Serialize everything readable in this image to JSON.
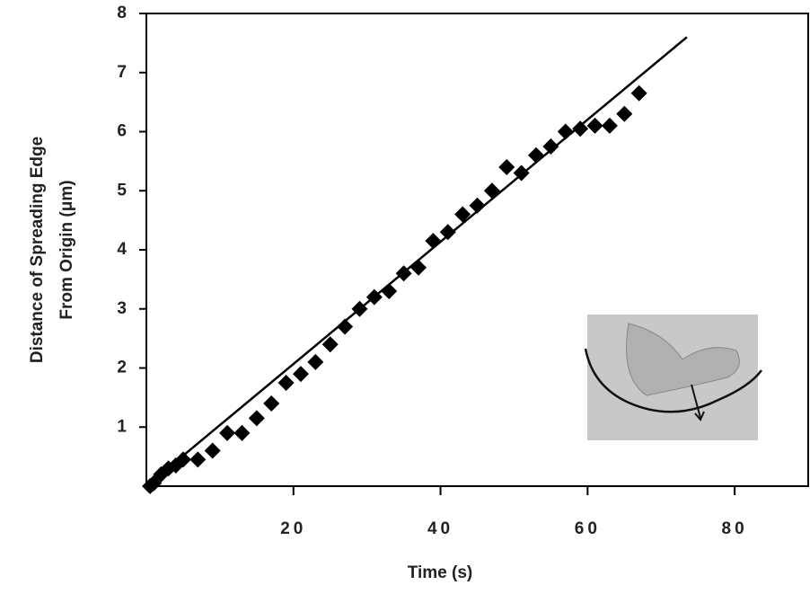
{
  "chart_data": {
    "type": "scatter",
    "xlabel": "Time (s)",
    "ylabel": [
      "Distance of Spreading Edge",
      "From Origin (μm)"
    ],
    "xlim": [
      0,
      90
    ],
    "ylim": [
      0,
      8
    ],
    "xticks": [
      20,
      40,
      60,
      80
    ],
    "yticks": [
      1,
      2,
      3,
      4,
      5,
      6,
      7,
      8
    ],
    "color": "#000000",
    "x": [
      0.5,
      1,
      2,
      3,
      4,
      5,
      7,
      9,
      11,
      13,
      15,
      17,
      19,
      21,
      23,
      25,
      27,
      29,
      31,
      33,
      35,
      37,
      39,
      41,
      43,
      45,
      47,
      49,
      51,
      53,
      55,
      57,
      59,
      61,
      63,
      65,
      67
    ],
    "values": [
      0.0,
      0.05,
      0.2,
      0.3,
      0.35,
      0.45,
      0.45,
      0.6,
      0.9,
      0.9,
      1.15,
      1.4,
      1.75,
      1.9,
      2.1,
      2.4,
      2.7,
      3.0,
      3.2,
      3.3,
      3.6,
      3.7,
      4.15,
      4.3,
      4.6,
      4.75,
      5.0,
      5.4,
      5.3,
      5.6,
      5.75,
      6.0,
      6.05,
      6.1,
      6.1,
      6.3,
      6.65
    ],
    "fit": {
      "x": [
        0,
        73.5
      ],
      "y": [
        0,
        7.6
      ]
    }
  }
}
